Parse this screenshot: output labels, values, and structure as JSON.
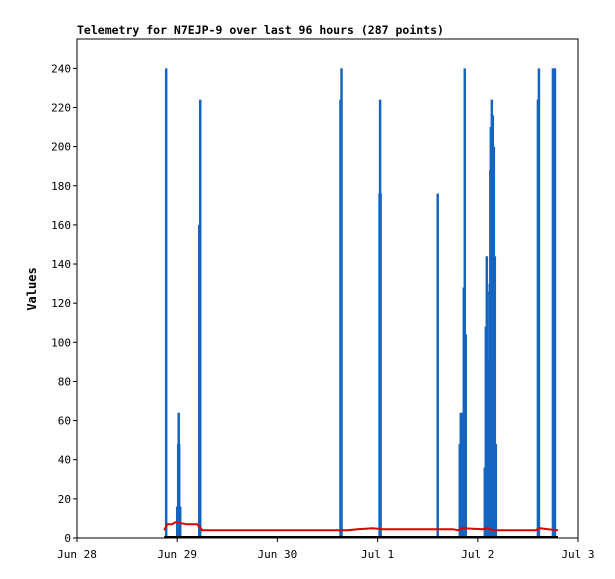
{
  "chart_data": {
    "type": "line",
    "title": "Telemetry for N7EJP-9 over last 96 hours (287 points)",
    "xlabel": "",
    "ylabel": "Values",
    "x_unit": "days",
    "xlim": [
      "Jun 28",
      "Jul 3"
    ],
    "x_ticks": [
      {
        "label": "Jun 28",
        "day": 0
      },
      {
        "label": "Jun 29",
        "day": 1
      },
      {
        "label": "Jun 30",
        "day": 2
      },
      {
        "label": "Jul 1",
        "day": 3
      },
      {
        "label": "Jul 2",
        "day": 4
      },
      {
        "label": "Jul 3",
        "day": 5
      }
    ],
    "ylim": [
      0,
      255
    ],
    "y_ticks": [
      0,
      20,
      40,
      60,
      80,
      100,
      120,
      140,
      160,
      180,
      200,
      220,
      240
    ],
    "grid": false,
    "colors": {
      "blue_series": "#1565c0",
      "red_series": "#dd0000",
      "black_series": "#000000"
    },
    "series": [
      {
        "color": "#1565c0",
        "spikes": [
          {
            "day": 0.89,
            "value": 240
          },
          {
            "day": 1.0,
            "value": 16
          },
          {
            "day": 1.01,
            "value": 48
          },
          {
            "day": 1.015,
            "value": 64
          },
          {
            "day": 1.02,
            "value": 48
          },
          {
            "day": 1.03,
            "value": 16
          },
          {
            "day": 1.22,
            "value": 160
          },
          {
            "day": 1.23,
            "value": 224
          },
          {
            "day": 2.63,
            "value": 224
          },
          {
            "day": 2.64,
            "value": 240
          },
          {
            "day": 3.02,
            "value": 176
          },
          {
            "day": 3.025,
            "value": 224
          },
          {
            "day": 3.03,
            "value": 176
          },
          {
            "day": 3.6,
            "value": 176
          },
          {
            "day": 3.82,
            "value": 48
          },
          {
            "day": 3.83,
            "value": 64
          },
          {
            "day": 3.84,
            "value": 64
          },
          {
            "day": 3.85,
            "value": 48
          },
          {
            "day": 3.86,
            "value": 128
          },
          {
            "day": 3.87,
            "value": 240
          },
          {
            "day": 3.88,
            "value": 104
          },
          {
            "day": 4.07,
            "value": 36
          },
          {
            "day": 4.08,
            "value": 108
          },
          {
            "day": 4.09,
            "value": 144
          },
          {
            "day": 4.095,
            "value": 126
          },
          {
            "day": 4.1,
            "value": 90
          },
          {
            "day": 4.11,
            "value": 55
          },
          {
            "day": 4.12,
            "value": 130
          },
          {
            "day": 4.125,
            "value": 188
          },
          {
            "day": 4.13,
            "value": 210
          },
          {
            "day": 4.14,
            "value": 224
          },
          {
            "day": 4.15,
            "value": 216
          },
          {
            "day": 4.16,
            "value": 200
          },
          {
            "day": 4.17,
            "value": 144
          },
          {
            "day": 4.18,
            "value": 48
          },
          {
            "day": 4.6,
            "value": 224
          },
          {
            "day": 4.61,
            "value": 240
          },
          {
            "day": 4.75,
            "value": 240
          },
          {
            "day": 4.76,
            "value": 240
          },
          {
            "day": 4.77,
            "value": 240
          }
        ]
      },
      {
        "color": "#dd0000",
        "points": [
          {
            "day": 0.87,
            "value": 4
          },
          {
            "day": 0.9,
            "value": 7
          },
          {
            "day": 0.95,
            "value": 7
          },
          {
            "day": 0.98,
            "value": 8
          },
          {
            "day": 1.1,
            "value": 7
          },
          {
            "day": 1.2,
            "value": 7
          },
          {
            "day": 1.25,
            "value": 4
          },
          {
            "day": 2.0,
            "value": 4
          },
          {
            "day": 2.7,
            "value": 4
          },
          {
            "day": 2.8,
            "value": 4.5
          },
          {
            "day": 2.95,
            "value": 5
          },
          {
            "day": 3.05,
            "value": 4.5
          },
          {
            "day": 3.75,
            "value": 4.5
          },
          {
            "day": 3.8,
            "value": 4
          },
          {
            "day": 3.85,
            "value": 5
          },
          {
            "day": 4.05,
            "value": 4.5
          },
          {
            "day": 4.1,
            "value": 5
          },
          {
            "day": 4.15,
            "value": 4
          },
          {
            "day": 4.58,
            "value": 4
          },
          {
            "day": 4.62,
            "value": 5
          },
          {
            "day": 4.7,
            "value": 4.5
          },
          {
            "day": 4.8,
            "value": 4
          }
        ]
      },
      {
        "color": "#000000",
        "points": [
          {
            "day": 0.87,
            "value": 0.5
          },
          {
            "day": 4.8,
            "value": 0.5
          }
        ]
      }
    ]
  }
}
